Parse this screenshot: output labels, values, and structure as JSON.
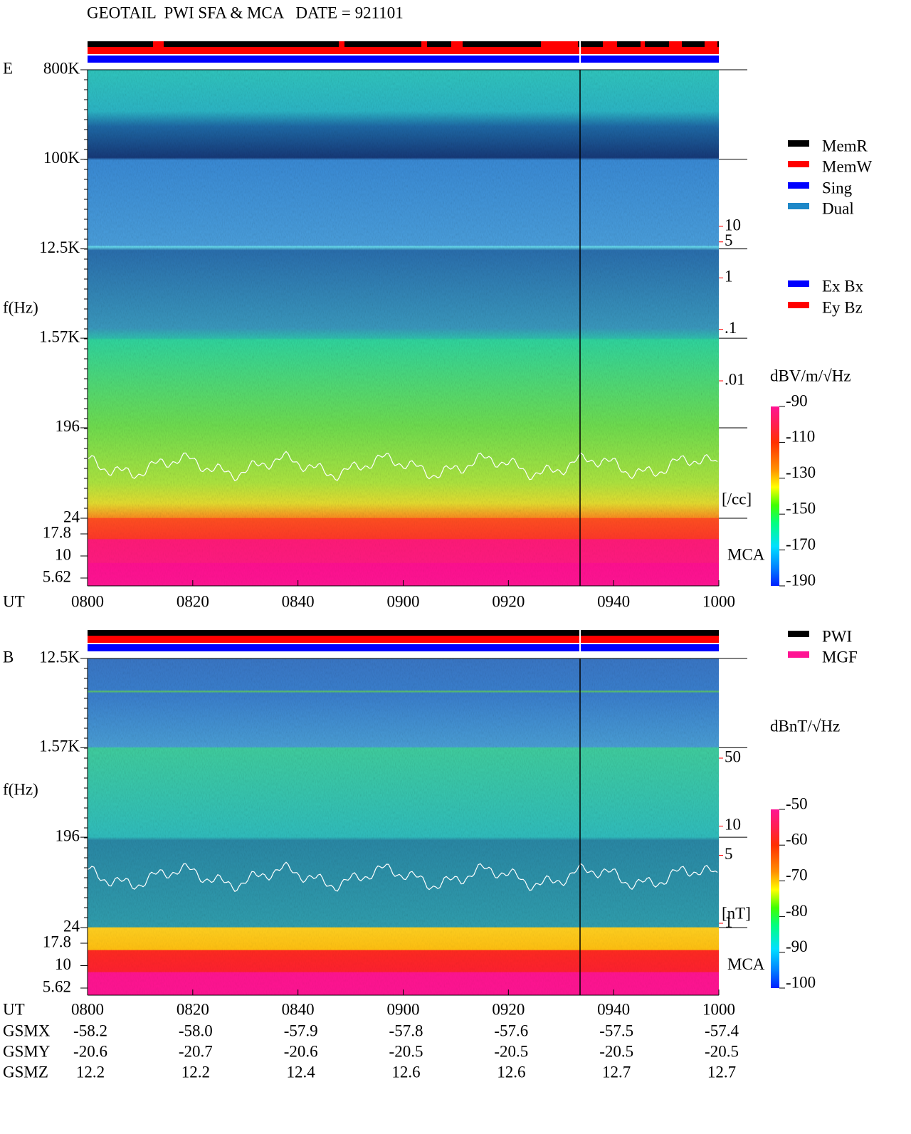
{
  "title": "GEOTAIL  PWI SFA & MCA   DATE = 921101",
  "chart_data": [
    {
      "type": "spectrogram",
      "panel": "E",
      "ylabel": "f(Hz)",
      "xlabel": "UT",
      "log_y": true,
      "x": [
        "0800",
        "0820",
        "0840",
        "0900",
        "0920",
        "0940",
        "1000"
      ],
      "ylim": [
        24,
        800000
      ],
      "yticks": [
        {
          "value": 800000,
          "label": "800K"
        },
        {
          "value": 100000,
          "label": "100K"
        },
        {
          "value": 12500,
          "label": "12.5K"
        },
        {
          "value": 1570,
          "label": "1.57K"
        },
        196,
        24
      ],
      "mca_label": "MCA",
      "mca_yticks": [
        17.8,
        10,
        5.62
      ],
      "y2lim": [
        0.01,
        10
      ],
      "y2ticks": [
        10,
        5,
        1,
        {
          "value": 0.1,
          "label": ".1"
        },
        {
          "value": 0.01,
          "label": ".01"
        }
      ],
      "y2_label": "[/cc]",
      "y2_color": "#ff0000",
      "colorbar": {
        "label": "dBV/m/√Hz",
        "lim": [
          -190,
          -90
        ],
        "ticks": [
          -90,
          -110,
          -130,
          -150,
          -170,
          -190
        ]
      },
      "legend": [
        {
          "name": "MemR",
          "color": "#000000"
        },
        {
          "name": "MemW",
          "color": "#ff0000"
        },
        {
          "name": "Sing",
          "color": "#0000ff"
        },
        {
          "name": "Dual",
          "color": "#1e88c8"
        }
      ],
      "legend2": [
        {
          "name": "Ex Bx",
          "color": "#0000ff"
        },
        {
          "name": "Ey Bz",
          "color": "#ff0000"
        }
      ]
    },
    {
      "type": "spectrogram",
      "panel": "B",
      "ylabel": "f(Hz)",
      "xlabel": "UT",
      "log_y": true,
      "x": [
        "0800",
        "0820",
        "0840",
        "0900",
        "0920",
        "0940",
        "1000"
      ],
      "ylim": [
        24,
        12500
      ],
      "yticks": [
        {
          "value": 12500,
          "label": "12.5K"
        },
        {
          "value": 1570,
          "label": "1.57K"
        },
        196,
        24
      ],
      "mca_label": "MCA",
      "mca_yticks": [
        17.8,
        10,
        5.62
      ],
      "y2lim": [
        1,
        50
      ],
      "y2ticks": [
        50,
        10,
        5,
        1
      ],
      "y2_label": "[nT]",
      "y2_color": "#ff0000",
      "colorbar": {
        "label": "dBnT/√Hz",
        "lim": [
          -100,
          -50
        ],
        "ticks": [
          -50,
          -60,
          -70,
          -80,
          -90,
          -100
        ]
      },
      "legend": [
        {
          "name": "PWI",
          "color": "#000000"
        },
        {
          "name": "MGF",
          "color": "#ff1493"
        }
      ]
    }
  ],
  "orbit": {
    "rows": [
      {
        "label": "GSMX",
        "values": [
          "-58.2",
          "-58.0",
          "-57.9",
          "-57.8",
          "-57.6",
          "-57.5",
          "-57.4"
        ]
      },
      {
        "label": "GSMY",
        "values": [
          "-20.6",
          "-20.7",
          "-20.6",
          "-20.5",
          "-20.5",
          "-20.5",
          "-20.5"
        ]
      },
      {
        "label": "GSMZ",
        "values": [
          "12.2",
          "12.2",
          "12.4",
          "12.6",
          "12.6",
          "12.7",
          "12.7"
        ]
      }
    ]
  }
}
